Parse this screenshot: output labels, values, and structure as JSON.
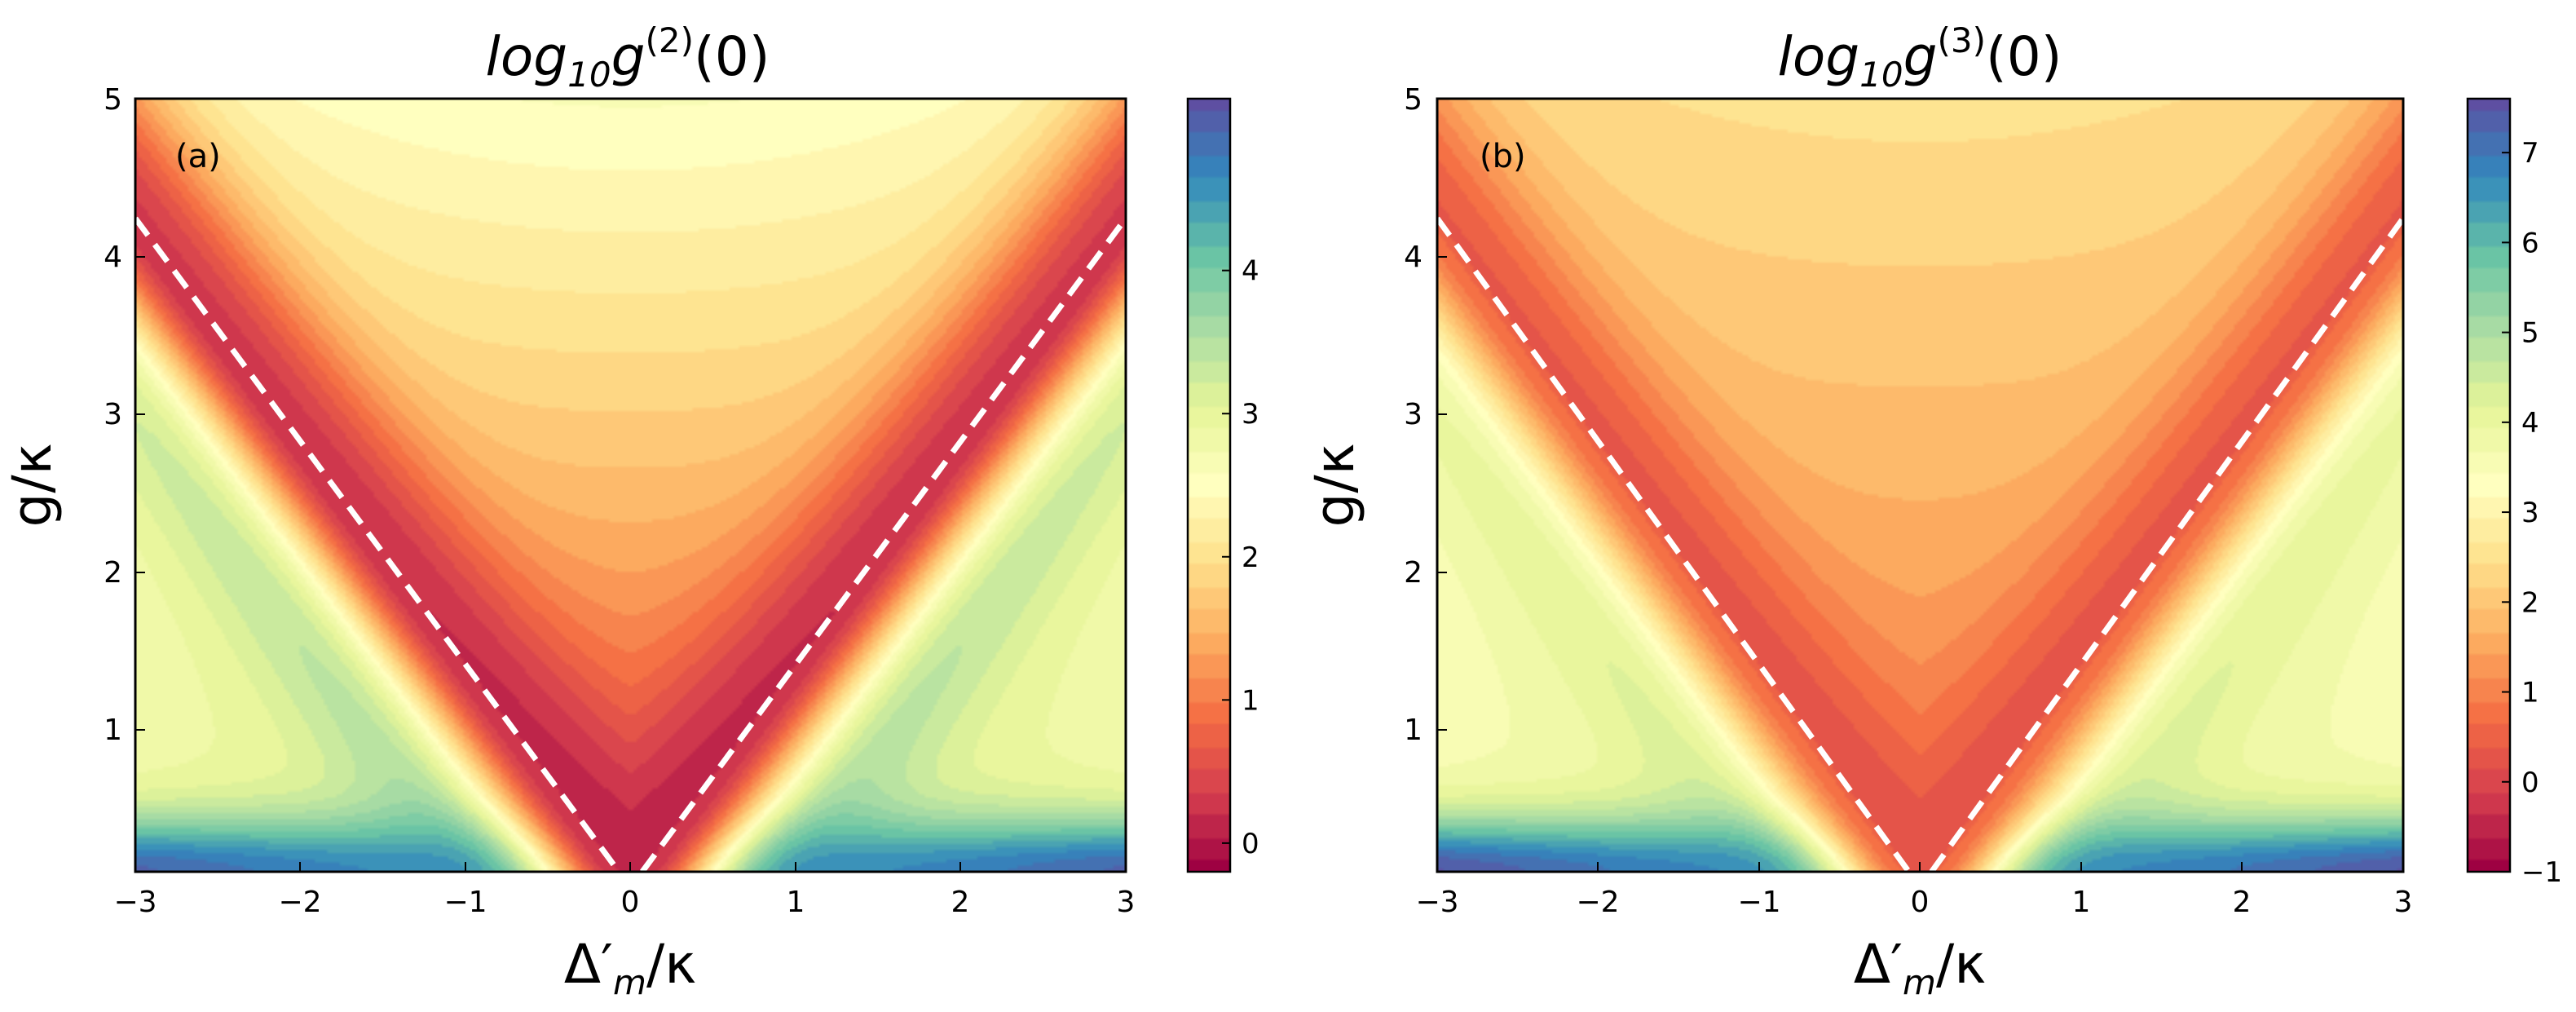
{
  "chart_data": [
    {
      "type": "heatmap",
      "panel_label": "(a)",
      "title": "log10g(2)(0)",
      "title_parts": {
        "base": "log",
        "sub": "10",
        "func": "g",
        "sup": "(2)",
        "arg": "(0)"
      },
      "xlabel": {
        "delta": "Δ",
        "prime": "′",
        "sub": "m",
        "rest": "/κ"
      },
      "ylabel": "g/κ",
      "xlim": [
        -3,
        3
      ],
      "ylim": [
        0.1,
        5
      ],
      "x_ticks": [
        "−3",
        "−2",
        "−1",
        "0",
        "1",
        "2",
        "3"
      ],
      "y_ticks": [
        "1",
        "2",
        "3",
        "4",
        "5"
      ],
      "colorbar": {
        "range": [
          -0.2,
          5.2
        ],
        "ticks": [
          "0",
          "1",
          "2",
          "3",
          "4"
        ],
        "colormap": "Spectral"
      },
      "dashed_line": "g/κ = √2·|Δ′m/κ|",
      "field": {
        "center_min": 0.2,
        "center_max": 2.6,
        "wing_peak": 3.3,
        "wing_edge": 5.0,
        "resonance_slope": 1.414
      }
    },
    {
      "type": "heatmap",
      "panel_label": "(b)",
      "title": "log10g(3)(0)",
      "title_parts": {
        "base": "log",
        "sub": "10",
        "func": "g",
        "sup": "(3)",
        "arg": "(0)"
      },
      "xlabel": {
        "delta": "Δ",
        "prime": "′",
        "sub": "m",
        "rest": "/κ"
      },
      "ylabel": "g/κ",
      "xlim": [
        -3,
        3
      ],
      "ylim": [
        0.1,
        5
      ],
      "x_ticks": [
        "−3",
        "−2",
        "−1",
        "0",
        "1",
        "2",
        "3"
      ],
      "y_ticks": [
        "1",
        "2",
        "3",
        "4",
        "5"
      ],
      "colorbar": {
        "range": [
          -1,
          7.6
        ],
        "ticks": [
          "−1",
          "0",
          "1",
          "2",
          "3",
          "4",
          "5",
          "6",
          "7"
        ],
        "colormap": "Spectral"
      },
      "dashed_line": "g/κ = √2·|Δ′m/κ|",
      "field": {
        "center_min": 0.6,
        "center_max": 2.5,
        "wing_peak": 4.2,
        "wing_edge": 7.5,
        "resonance_slope": 1.414
      }
    }
  ]
}
